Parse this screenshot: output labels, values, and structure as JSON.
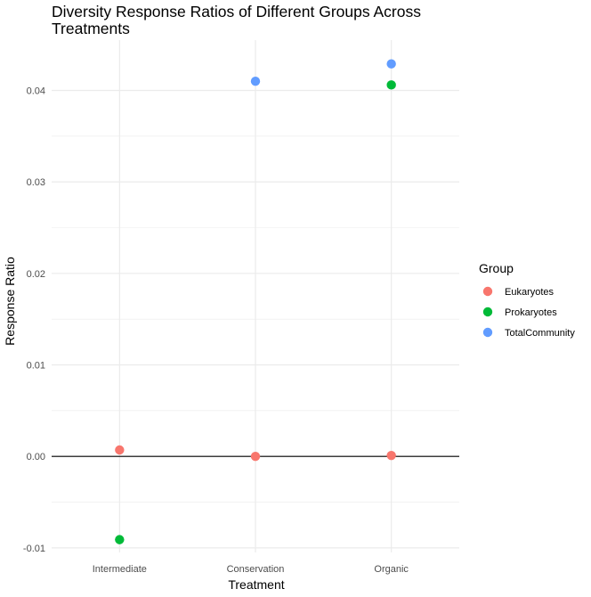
{
  "chart_data": {
    "type": "scatter",
    "title_lines": [
      "Diversity Response Ratios of Different Groups Across",
      "Treatments"
    ],
    "xlabel": "Treatment",
    "ylabel": "Response Ratio",
    "categories": [
      "Intermediate",
      "Conservation",
      "Organic"
    ],
    "ylim": [
      -0.0105,
      0.0455
    ],
    "y_ticks": [
      -0.01,
      0.0,
      0.01,
      0.02,
      0.03,
      0.04
    ],
    "y_tick_labels": [
      "-0.01",
      "0.00",
      "0.01",
      "0.02",
      "0.03",
      "0.04"
    ],
    "reference_line_y": 0.0,
    "grid": true,
    "legend": {
      "title": "Group",
      "position": "right"
    },
    "series": [
      {
        "name": "Eukaryotes",
        "color": "#F8766D",
        "values": [
          0.0007,
          0.0,
          0.0001
        ]
      },
      {
        "name": "Prokaryotes",
        "color": "#00BA38",
        "values": [
          -0.0091,
          null,
          0.0406
        ]
      },
      {
        "name": "TotalCommunity",
        "color": "#619CFF",
        "values": [
          null,
          0.041,
          0.0429
        ]
      }
    ]
  }
}
